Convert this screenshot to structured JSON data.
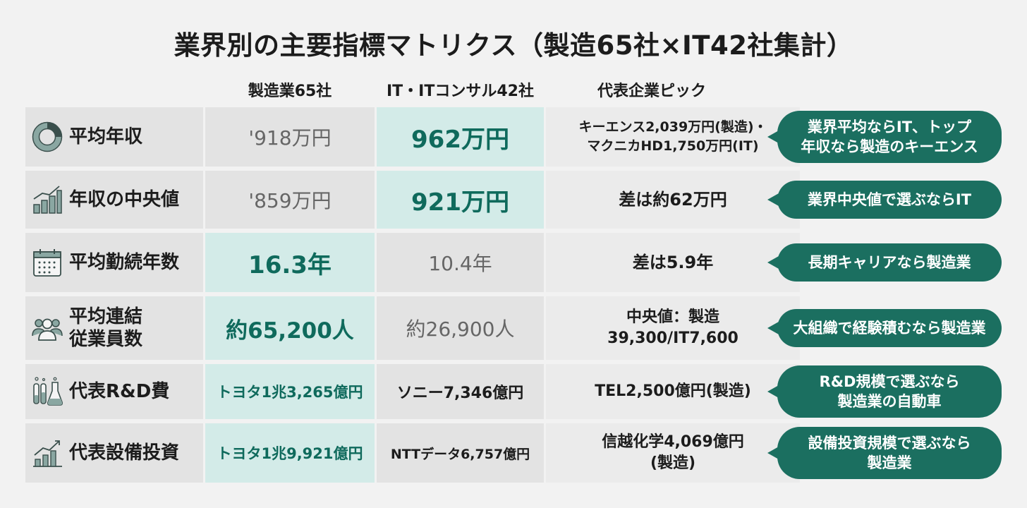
{
  "title": "業界別の主要指標マトリクス（製造65社×IT42社集計）",
  "columns": {
    "manufacturing": "製造業65社",
    "it": "IT・ITコンサル42社",
    "representative": "代表企業ピック"
  },
  "rows": [
    {
      "icon": "donut-chart-icon",
      "label": "平均年収",
      "manufacturing": "'918万円",
      "it": "962万円",
      "representative": "キーエンス2,039万円(製造)・\nマクニカHD1,750万円(IT)",
      "note": "業界平均ならIT、トップ\n年収なら製造のキーエンス"
    },
    {
      "icon": "bar-chart-icon",
      "label": "年収の中央値",
      "manufacturing": "'859万円",
      "it": "921万円",
      "representative": "差は約62万円",
      "note": "業界中央値で選ぶならIT"
    },
    {
      "icon": "calendar-icon",
      "label": "平均勤続年数",
      "manufacturing": "16.3年",
      "it": "10.4年",
      "representative": "差は5.9年",
      "note": "長期キャリアなら製造業"
    },
    {
      "icon": "people-group-icon",
      "label": "平均連結\n従業員数",
      "manufacturing": "約65,200人",
      "it": "約26,900人",
      "representative": "中央値：製造\n39,300/IT7,600",
      "note": "大組織で経験積むなら製造業"
    },
    {
      "icon": "lab-flask-icon",
      "label": "代表R&D費",
      "manufacturing": "トヨタ1兆3,265億円",
      "it": "ソニー7,346億円",
      "representative": "TEL2,500億円(製造)",
      "note": "R&D規模で選ぶなら\n製造業の自動車"
    },
    {
      "icon": "growth-chart-icon",
      "label": "代表設備投資",
      "manufacturing": "トヨタ1兆9,921億円",
      "it": "NTTデータ6,757億円",
      "representative": "信越化学4,069億円\n(製造)",
      "note": "設備投資規模で選ぶなら\n製造業"
    }
  ],
  "colors": {
    "accent": "#1b6f60",
    "highlight_cell": "#d3ebe8",
    "highlight_text": "#0f6a5c",
    "cell_gray": "#e3e3e3"
  }
}
